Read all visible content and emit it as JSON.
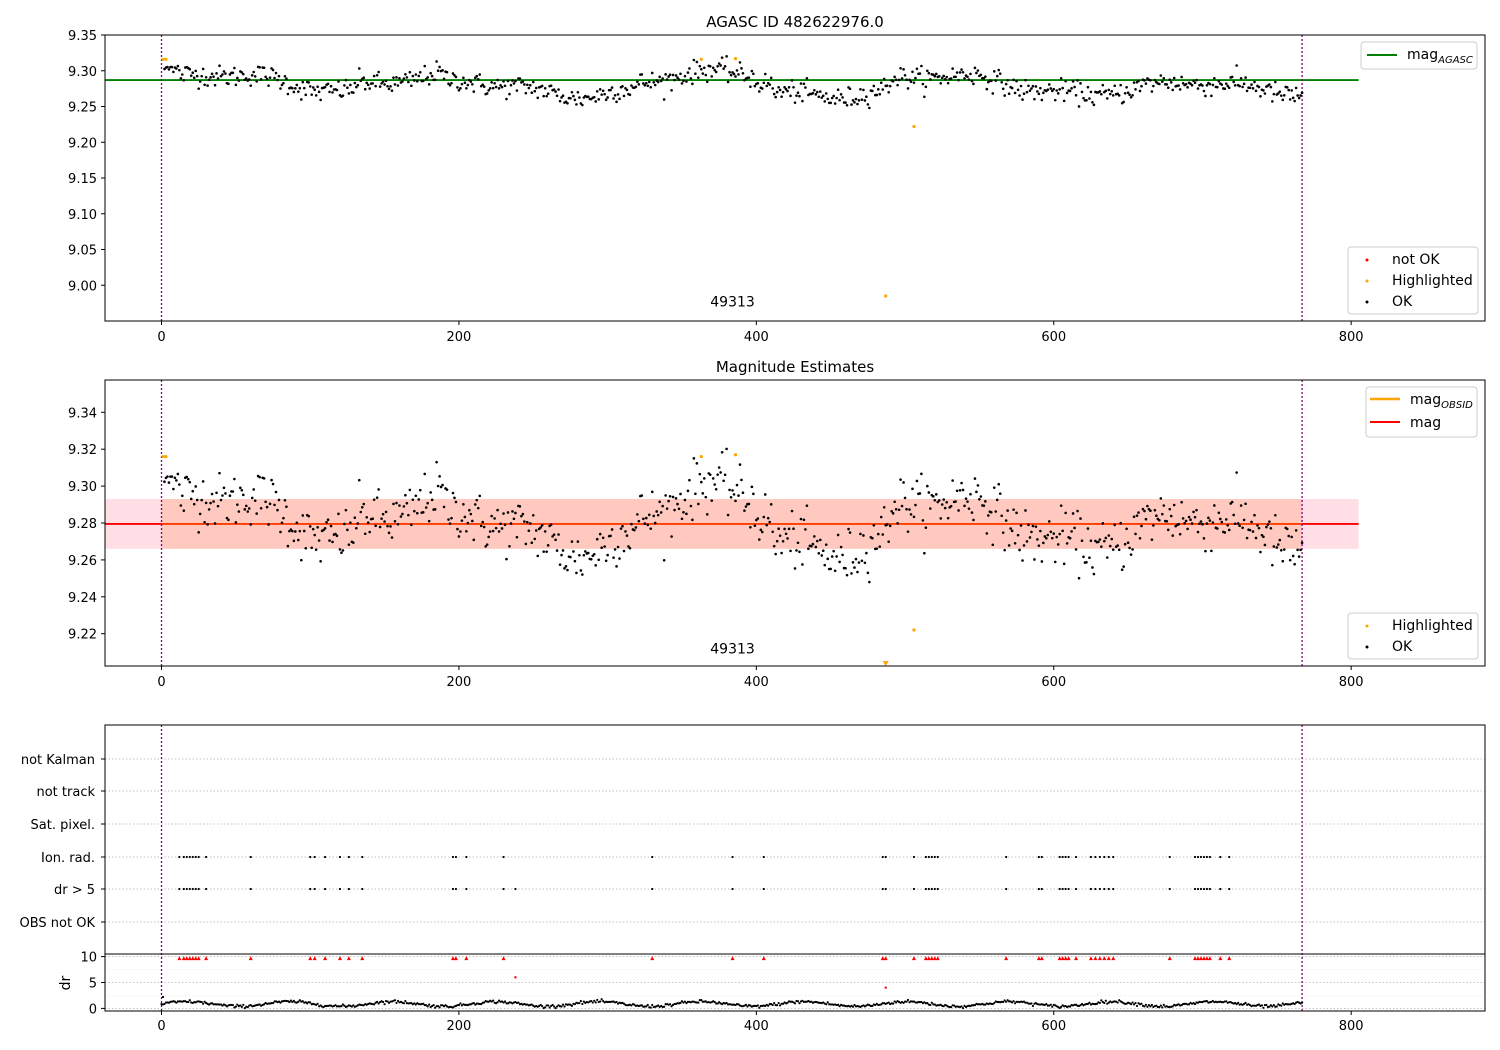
{
  "chart_data": [
    {
      "type": "scatter",
      "title": "AGASC ID 482622976.0",
      "xlim": [
        -38,
        890
      ],
      "ylim": [
        8.95,
        9.35
      ],
      "xticks": [
        "0",
        "200",
        "400",
        "600",
        "800"
      ],
      "xtick_values": [
        0,
        200,
        400,
        600,
        800
      ],
      "yticks": [
        "9.00",
        "9.05",
        "9.10",
        "9.15",
        "9.20",
        "9.25",
        "9.30",
        "9.35"
      ],
      "ytick_values": [
        9.0,
        9.05,
        9.1,
        9.15,
        9.2,
        9.25,
        9.3,
        9.35
      ],
      "obs_boundaries": [
        0,
        767
      ],
      "annotation": {
        "text": "49313",
        "x": 384,
        "y": 8.97
      },
      "reference_line": {
        "name": "mag_AGASC",
        "y": 9.287,
        "x": [
          -38,
          805
        ],
        "color": "#008000"
      },
      "ok_points": {
        "color": "#000000",
        "description": "Per-frame magnitude samples, x index 0-767, mostly between 9.25 and 9.31 (mean ~9.28)",
        "count": 700,
        "x_range": [
          0,
          767
        ],
        "y_mean": 9.28,
        "y_spread": 0.013
      },
      "highlighted_points": {
        "color": "#ffa500",
        "x": [
          1,
          3,
          363,
          386,
          506,
          487
        ],
        "y": [
          9.316,
          9.316,
          9.316,
          9.317,
          9.222,
          8.985
        ]
      },
      "legend_upper": [
        {
          "label_main": "mag",
          "label_sub": "AGASC",
          "color": "#008000"
        }
      ],
      "legend_lower": [
        {
          "label": "not OK",
          "color": "#ff0000"
        },
        {
          "label": "Highlighted",
          "color": "#ffa500"
        },
        {
          "label": "OK",
          "color": "#000000"
        }
      ]
    },
    {
      "type": "scatter",
      "title": "Magnitude Estimates",
      "xlim": [
        -38,
        890
      ],
      "ylim": [
        9.2025,
        9.3575
      ],
      "xticks": [
        "0",
        "200",
        "400",
        "600",
        "800"
      ],
      "xtick_values": [
        0,
        200,
        400,
        600,
        800
      ],
      "yticks": [
        "9.22",
        "9.24",
        "9.26",
        "9.28",
        "9.30",
        "9.32",
        "9.34"
      ],
      "ytick_values": [
        9.22,
        9.24,
        9.26,
        9.28,
        9.3,
        9.32,
        9.34
      ],
      "obs_boundaries": [
        0,
        767
      ],
      "annotation": {
        "text": "49313",
        "x": 384,
        "y": 9.206
      },
      "mag_line": {
        "name": "mag",
        "y": 9.2795,
        "x": [
          -38,
          805
        ],
        "color": "#ff0000"
      },
      "mag_obsid_line": {
        "name": "mag_OBSID",
        "y": 9.2795,
        "x": [
          0,
          767
        ],
        "color": "#ffa500"
      },
      "band_outer": {
        "y": [
          9.266,
          9.293
        ],
        "x": [
          -38,
          805
        ],
        "color": "#ffc0cb"
      },
      "band_inner": {
        "y": [
          9.266,
          9.293
        ],
        "x": [
          0,
          767
        ],
        "color": "#ffa07a"
      },
      "highlighted_points": {
        "color": "#ffa500",
        "x": [
          1,
          3,
          363,
          386,
          506,
          487
        ],
        "y": [
          9.316,
          9.316,
          9.316,
          9.317,
          9.222,
          9.2035
        ]
      },
      "legend_upper": [
        {
          "label_main": "mag",
          "label_sub": "OBSID",
          "color": "#ffa500"
        },
        {
          "label_main": "mag",
          "label_sub": "",
          "color": "#ff0000"
        }
      ],
      "legend_lower": [
        {
          "label": "Highlighted",
          "color": "#ffa500"
        },
        {
          "label": "OK",
          "color": "#000000"
        }
      ]
    },
    {
      "type": "scatter",
      "title": "",
      "xlim": [
        -38,
        890
      ],
      "category_rows": [
        "not Kalman",
        "not track",
        "Sat. pixel.",
        "Ion. rad.",
        "dr > 5",
        "OBS not OK"
      ],
      "flag_x": [
        12,
        15,
        17,
        19,
        21,
        23,
        25,
        30,
        60,
        100,
        103,
        110,
        120,
        126,
        135,
        196,
        198,
        205,
        230,
        330,
        384,
        405,
        485,
        487,
        506,
        514,
        516,
        518,
        520,
        522,
        568,
        590,
        592,
        604,
        606,
        608,
        610,
        615,
        625,
        628,
        631,
        634,
        637,
        640,
        678,
        695,
        697,
        699,
        701,
        703,
        705,
        712,
        718
      ],
      "dr_flag_extra_x": [
        238
      ],
      "dr_panel": {
        "ylabel": "dr",
        "yticks": [
          "0",
          "5",
          "10"
        ],
        "ytick_values": [
          0,
          5,
          10
        ],
        "ylim": [
          -0.5,
          10.5
        ],
        "red_markers_y": 9.7,
        "outliers": [
          {
            "x": 238,
            "y": 6
          },
          {
            "x": 487,
            "y": 4
          }
        ],
        "typical_dr_range": [
          0,
          1.7
        ]
      },
      "xticks": [
        "0",
        "200",
        "400",
        "600",
        "800"
      ],
      "xtick_values": [
        0,
        200,
        400,
        600,
        800
      ],
      "obs_boundaries": [
        0,
        767
      ]
    }
  ]
}
